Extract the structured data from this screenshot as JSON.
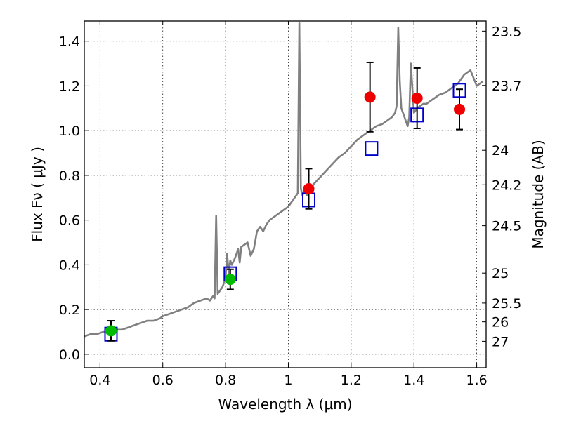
{
  "chart_data": {
    "type": "scatter",
    "title": "",
    "xlabel": "Wavelength  λ (μm)",
    "ylabel": "Flux  Fν  ( μJy )",
    "y2label": "Magnitude (AB)",
    "xlim": [
      0.35,
      1.63
    ],
    "ylim": [
      -0.06,
      1.49
    ],
    "xticks": [
      0.4,
      0.6,
      0.8,
      1.0,
      1.2,
      1.4,
      1.6
    ],
    "xtick_labels": [
      "0.4",
      "0.6",
      "0.8",
      "1",
      "1.2",
      "1.4",
      "1.6"
    ],
    "yticks": [
      0.0,
      0.2,
      0.4,
      0.6,
      0.8,
      1.0,
      1.2,
      1.4
    ],
    "ytick_labels": [
      "0.0",
      "0.2",
      "0.4",
      "0.6",
      "0.8",
      "1.0",
      "1.2",
      "1.4"
    ],
    "mag_ticks": [
      {
        "label": "23.5",
        "flux": 1.445
      },
      {
        "label": "23.7",
        "flux": 1.202
      },
      {
        "label": "24",
        "flux": 0.912
      },
      {
        "label": "24.2",
        "flux": 0.758
      },
      {
        "label": "24.5",
        "flux": 0.575
      },
      {
        "label": "25",
        "flux": 0.363
      },
      {
        "label": "25.5",
        "flux": 0.229
      },
      {
        "label": "26",
        "flux": 0.145
      },
      {
        "label": "27",
        "flux": 0.058
      }
    ],
    "grid": true,
    "series": [
      {
        "kind": "line",
        "color": "#808080",
        "x": [
          0.35,
          0.37,
          0.39,
          0.41,
          0.43,
          0.45,
          0.47,
          0.49,
          0.51,
          0.53,
          0.55,
          0.57,
          0.59,
          0.6,
          0.62,
          0.64,
          0.66,
          0.68,
          0.7,
          0.72,
          0.74,
          0.75,
          0.76,
          0.765,
          0.77,
          0.775,
          0.78,
          0.79,
          0.8,
          0.805,
          0.81,
          0.815,
          0.82,
          0.83,
          0.84,
          0.845,
          0.85,
          0.86,
          0.87,
          0.88,
          0.89,
          0.9,
          0.91,
          0.92,
          0.93,
          0.94,
          0.95,
          0.96,
          0.97,
          0.98,
          0.99,
          1.0,
          1.01,
          1.02,
          1.03,
          1.035,
          1.04,
          1.045,
          1.05,
          1.06,
          1.07,
          1.08,
          1.1,
          1.12,
          1.14,
          1.16,
          1.18,
          1.2,
          1.22,
          1.24,
          1.26,
          1.28,
          1.3,
          1.32,
          1.33,
          1.34,
          1.345,
          1.35,
          1.355,
          1.36,
          1.365,
          1.37,
          1.375,
          1.38,
          1.385,
          1.39,
          1.4,
          1.41,
          1.42,
          1.43,
          1.44,
          1.45,
          1.46,
          1.47,
          1.48,
          1.5,
          1.52,
          1.54,
          1.56,
          1.58,
          1.6,
          1.62
        ],
        "y": [
          0.08,
          0.09,
          0.09,
          0.1,
          0.1,
          0.11,
          0.11,
          0.12,
          0.13,
          0.14,
          0.15,
          0.15,
          0.16,
          0.17,
          0.18,
          0.19,
          0.2,
          0.21,
          0.23,
          0.24,
          0.25,
          0.24,
          0.26,
          0.25,
          0.62,
          0.27,
          0.28,
          0.3,
          0.34,
          0.45,
          0.36,
          0.42,
          0.4,
          0.43,
          0.47,
          0.41,
          0.48,
          0.49,
          0.5,
          0.44,
          0.47,
          0.55,
          0.57,
          0.55,
          0.58,
          0.6,
          0.61,
          0.62,
          0.63,
          0.64,
          0.65,
          0.66,
          0.68,
          0.7,
          0.72,
          1.48,
          0.74,
          0.71,
          0.73,
          0.71,
          0.73,
          0.76,
          0.79,
          0.82,
          0.85,
          0.88,
          0.9,
          0.93,
          0.96,
          0.98,
          1.0,
          1.02,
          1.03,
          1.05,
          1.06,
          1.08,
          1.11,
          1.46,
          1.22,
          1.1,
          1.08,
          1.06,
          1.04,
          1.02,
          1.06,
          1.3,
          1.08,
          1.1,
          1.11,
          1.12,
          1.12,
          1.13,
          1.14,
          1.15,
          1.16,
          1.17,
          1.19,
          1.21,
          1.25,
          1.27,
          1.2,
          1.22
        ]
      },
      {
        "kind": "marker",
        "marker": "square-open",
        "color": "#0000cc",
        "x": [
          0.435,
          0.815,
          1.065,
          1.265,
          1.41,
          1.545
        ],
        "y": [
          0.09,
          0.36,
          0.69,
          0.92,
          1.07,
          1.18
        ]
      },
      {
        "kind": "marker",
        "marker": "circle",
        "color": "#00bb00",
        "x": [
          0.435,
          0.815
        ],
        "y": [
          0.105,
          0.335
        ],
        "yerr": [
          0.045,
          0.045
        ]
      },
      {
        "kind": "marker",
        "marker": "circle",
        "color": "#ee0000",
        "x": [
          1.065,
          1.26,
          1.41,
          1.545
        ],
        "y": [
          0.74,
          1.15,
          1.145,
          1.095
        ],
        "yerr": [
          0.09,
          0.155,
          0.135,
          0.09
        ]
      }
    ]
  }
}
